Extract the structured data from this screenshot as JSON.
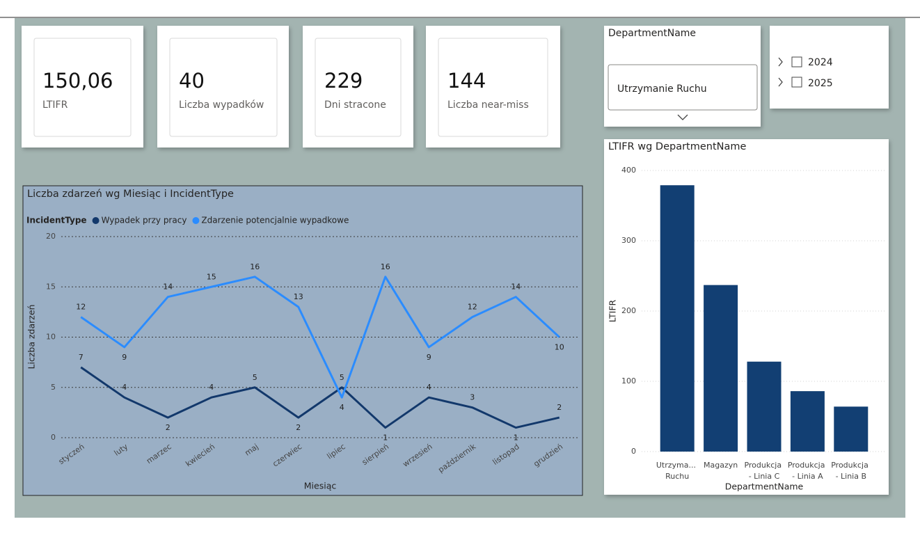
{
  "cards": [
    {
      "value": "150,06",
      "label": "LTIFR"
    },
    {
      "value": "40",
      "label": "Liczba wypadków"
    },
    {
      "value": "229",
      "label": "Dni stracone"
    },
    {
      "value": "144",
      "label": "Liczba near-miss"
    }
  ],
  "slicers": {
    "department": {
      "title": "DepartmentName",
      "selected": "Utrzymanie Ruchu"
    },
    "years": [
      "2024",
      "2025"
    ]
  },
  "chart_data": [
    {
      "type": "line",
      "title": "Liczba zdarzeń wg Miesiąc i IncidentType",
      "legend_title": "IncidentType",
      "x_label": "Miesiąc",
      "y_label": "Liczba zdarzeń",
      "categories": [
        "styczeń",
        "luty",
        "marzec",
        "kwiecień",
        "maj",
        "czerwiec",
        "lipiec",
        "sierpień",
        "wrzesień",
        "październik",
        "listopad",
        "grudzień"
      ],
      "series": [
        {
          "name": "Wypadek przy pracy",
          "color": "#12386b",
          "values": [
            7,
            4,
            2,
            4,
            5,
            2,
            5,
            1,
            4,
            3,
            1,
            2
          ]
        },
        {
          "name": "Zdarzenie potencjalnie wypadkowe",
          "color": "#2b8cff",
          "values": [
            12,
            9,
            14,
            15,
            16,
            13,
            4,
            16,
            9,
            12,
            14,
            10
          ]
        }
      ],
      "ylim": [
        0,
        20
      ],
      "yticks": [
        0,
        5,
        10,
        15,
        20
      ],
      "grid": true,
      "data_labels": true
    },
    {
      "type": "bar",
      "title": "LTIFR wg DepartmentName",
      "x_label": "DepartmentName",
      "y_label": "LTIFR",
      "categories": [
        "Utrzyma... Ruchu",
        "Magazyn",
        "Produkcja - Linia C",
        "Produkcja - Linia A",
        "Produkcja - Linia B"
      ],
      "values": [
        379,
        237,
        128,
        86,
        64
      ],
      "color": "#123f73",
      "ylim": [
        0,
        400
      ],
      "yticks": [
        0,
        100,
        200,
        300,
        400
      ],
      "grid": true
    }
  ]
}
